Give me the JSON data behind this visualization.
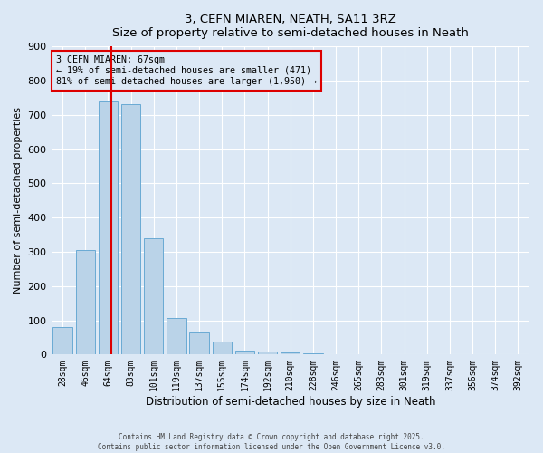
{
  "title": "3, CEFN MIAREN, NEATH, SA11 3RZ",
  "subtitle": "Size of property relative to semi-detached houses in Neath",
  "xlabel": "Distribution of semi-detached houses by size in Neath",
  "ylabel": "Number of semi-detached properties",
  "categories": [
    "28sqm",
    "46sqm",
    "64sqm",
    "83sqm",
    "101sqm",
    "119sqm",
    "137sqm",
    "155sqm",
    "174sqm",
    "192sqm",
    "210sqm",
    "228sqm",
    "246sqm",
    "265sqm",
    "283sqm",
    "301sqm",
    "319sqm",
    "337sqm",
    "356sqm",
    "374sqm",
    "392sqm"
  ],
  "bar_heights": [
    80,
    305,
    740,
    730,
    340,
    108,
    68,
    38,
    12,
    8,
    5,
    3,
    0,
    0,
    0,
    0,
    0,
    0,
    0,
    0,
    0
  ],
  "ylim": [
    0,
    900
  ],
  "yticks": [
    0,
    100,
    200,
    300,
    400,
    500,
    600,
    700,
    800,
    900
  ],
  "bar_color": "#bad3e8",
  "bar_edge_color": "#6aaad4",
  "property_line_x": 2,
  "property_label": "3 CEFN MIAREN: 67sqm",
  "annotation_line1": "← 19% of semi-detached houses are smaller (471)",
  "annotation_line2": "81% of semi-detached houses are larger (1,950) →",
  "box_color": "#dd0000",
  "bg_color": "#dce8f5",
  "grid_color": "#ffffff",
  "footer1": "Contains HM Land Registry data © Crown copyright and database right 2025.",
  "footer2": "Contains public sector information licensed under the Open Government Licence v3.0."
}
